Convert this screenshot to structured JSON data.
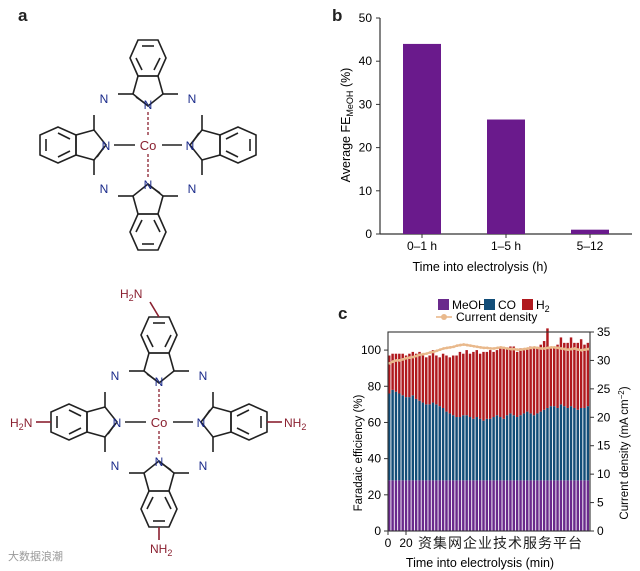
{
  "panels": {
    "a": "a",
    "b": "b",
    "c": "c"
  },
  "molecule_top": {
    "center": "Co",
    "n": "N"
  },
  "molecule_bottom": {
    "center": "Co",
    "n": "N",
    "nh2": "NH",
    "nh2_sub": "2",
    "h2n": "H",
    "h2n_sub": "2",
    "h2n_end": "N"
  },
  "chart_b": {
    "chart_data": {
      "type": "bar",
      "categories": [
        "0–1 h",
        "1–5 h",
        "5–12"
      ],
      "values": [
        44,
        26.5,
        1
      ],
      "xlabel": "Time into electrolysis (h)",
      "ylabel_main": "Average FE",
      "ylabel_sub": "MeOH",
      "ylabel_unit": " (%)",
      "ylim": [
        0,
        50
      ],
      "yticks": [
        0,
        10,
        20,
        30,
        40,
        50
      ],
      "bar_color": "#6a1a8c"
    }
  },
  "chart_c": {
    "chart_data": {
      "type": "bar",
      "stacked": true,
      "xlabel": "Time into electrolysis (min)",
      "ylabel_left": "Faradaic efficiency (%)",
      "ylabel_right_main": "Current density (mA cm",
      "ylabel_right_sup": "−2",
      "ylabel_right_end": ")",
      "ylim_left": [
        0,
        110
      ],
      "yticks_left": [
        0,
        20,
        40,
        60,
        80,
        100
      ],
      "ylim_right": [
        0,
        35
      ],
      "yticks_right": [
        0,
        5,
        10,
        15,
        20,
        25,
        30,
        35
      ],
      "xticks_visible": [
        "0",
        "20"
      ],
      "legend": [
        {
          "name": "MeOH",
          "color": "#6a2a8c"
        },
        {
          "name": "CO",
          "color": "#124d78"
        },
        {
          "name": "H",
          "sub": "2",
          "color": "#b0191e"
        },
        {
          "name": "Current density",
          "color": "#e9b98c",
          "marker": "dot"
        }
      ],
      "meoh": [
        28,
        28,
        28,
        28,
        28,
        28,
        28,
        28,
        28,
        28,
        28,
        28,
        28,
        28,
        28,
        28,
        28,
        28,
        28,
        28,
        28,
        28,
        28,
        28,
        28,
        28,
        28,
        28,
        28,
        28,
        28,
        28,
        28,
        28,
        28,
        28,
        28,
        28,
        28,
        28,
        28,
        28,
        28,
        28,
        28,
        28,
        28,
        28,
        28,
        28,
        28,
        28,
        28,
        28,
        28,
        28,
        28,
        28,
        28,
        28
      ],
      "co": [
        48,
        50,
        49,
        48,
        47,
        46,
        46,
        47,
        45,
        44,
        43,
        42,
        42,
        43,
        42,
        41,
        40,
        38,
        37,
        36,
        35,
        35,
        36,
        36,
        35,
        34,
        35,
        34,
        33,
        34,
        34,
        35,
        36,
        35,
        34,
        36,
        37,
        36,
        35,
        36,
        37,
        38,
        37,
        36,
        37,
        38,
        39,
        40,
        41,
        41,
        40,
        42,
        41,
        40,
        41,
        40,
        39,
        40,
        40,
        41
      ],
      "h2": [
        21,
        20,
        21,
        22,
        23,
        23,
        24,
        24,
        25,
        27,
        26,
        26,
        27,
        29,
        27,
        27,
        30,
        31,
        31,
        33,
        34,
        36,
        34,
        36,
        35,
        37,
        37,
        36,
        38,
        37,
        38,
        36,
        36,
        38,
        39,
        37,
        37,
        38,
        36,
        37,
        36,
        35,
        37,
        37,
        36,
        37,
        38,
        44,
        32,
        33,
        35,
        37,
        35,
        36,
        38,
        36,
        37,
        38,
        35,
        35
      ],
      "current_density": [
        29.5,
        29.8,
        30.0,
        30.0,
        30.2,
        30.4,
        30.5,
        30.6,
        30.8,
        31.0,
        31.1,
        31.2,
        31.4,
        31.5,
        31.7,
        31.9,
        32.1,
        32.2,
        32.3,
        32.4,
        32.6,
        32.7,
        32.8,
        32.7,
        32.6,
        32.5,
        32.4,
        32.3,
        32.2,
        32.2,
        32.1,
        32.1,
        32.2,
        32.3,
        32.2,
        32.1,
        32.0,
        32.0,
        31.9,
        31.9,
        32.0,
        32.1,
        32.2,
        32.3,
        32.2,
        32.1,
        32.1,
        32.2,
        32.3,
        32.3,
        32.2,
        32.1,
        32.0,
        31.9,
        32.0,
        32.1,
        31.9,
        31.8,
        31.9,
        32.0
      ]
    }
  },
  "watermarks": {
    "left": "大数据浪潮",
    "right": "资集网企业技术服务平台"
  }
}
